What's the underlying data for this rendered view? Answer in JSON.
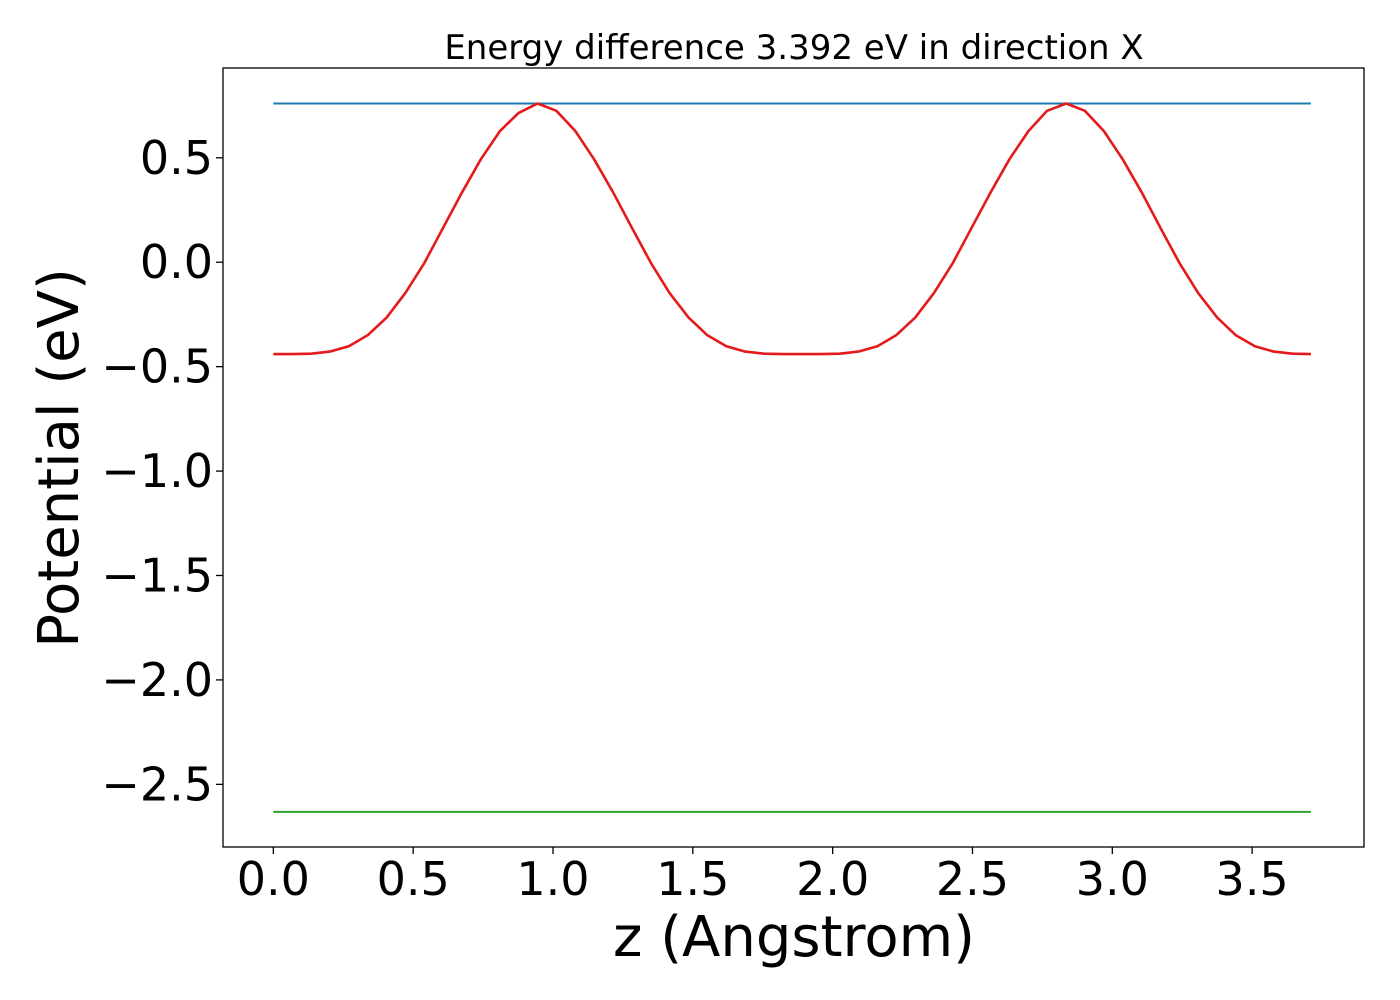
{
  "chart_data": {
    "type": "line",
    "title": "Energy difference 3.392 eV in direction X",
    "xlabel": "z (Angstrom)",
    "ylabel": "Potential (eV)",
    "xlim": [
      -0.18,
      3.9
    ],
    "ylim": [
      -2.8,
      0.93
    ],
    "xticks": [
      0.0,
      0.5,
      1.0,
      1.5,
      2.0,
      2.5,
      3.0,
      3.5
    ],
    "xtick_labels": [
      "0.0",
      "0.5",
      "1.0",
      "1.5",
      "2.0",
      "2.5",
      "3.0",
      "3.5"
    ],
    "yticks": [
      0.5,
      0.0,
      -0.5,
      -1.0,
      -1.5,
      -2.0,
      -2.5
    ],
    "ytick_labels": [
      "0.5",
      "0.0",
      "−0.5",
      "−1.0",
      "−1.5",
      "−2.0",
      "−2.5"
    ],
    "grid": false,
    "legend": "none",
    "series": [
      {
        "color": "#1f77b4",
        "x": [
          0.0,
          3.71
        ],
        "y": [
          0.76,
          0.76
        ]
      },
      {
        "color": "#2ca02c",
        "x": [
          0.0,
          3.71
        ],
        "y": [
          -2.632,
          -2.632
        ]
      },
      {
        "color": "#e41a1c",
        "x": [
          0.0,
          0.067,
          0.135,
          0.202,
          0.27,
          0.337,
          0.405,
          0.472,
          0.54,
          0.607,
          0.675,
          0.742,
          0.81,
          0.877,
          0.945,
          1.012,
          1.08,
          1.147,
          1.215,
          1.282,
          1.35,
          1.417,
          1.485,
          1.552,
          1.62,
          1.687,
          1.755,
          1.822,
          1.89,
          1.957,
          2.025,
          2.092,
          2.16,
          2.227,
          2.295,
          2.362,
          2.43,
          2.497,
          2.565,
          2.632,
          2.7,
          2.767,
          2.835,
          2.902,
          2.97,
          3.037,
          3.105,
          3.172,
          3.24,
          3.307,
          3.375,
          3.442,
          3.51,
          3.577,
          3.645,
          3.71
        ],
        "y": [
          -0.44,
          -0.44,
          -0.438,
          -0.428,
          -0.402,
          -0.35,
          -0.265,
          -0.148,
          -0.003,
          0.165,
          0.335,
          0.493,
          0.628,
          0.715,
          0.76,
          0.725,
          0.628,
          0.493,
          0.335,
          0.165,
          -0.003,
          -0.148,
          -0.265,
          -0.35,
          -0.402,
          -0.428,
          -0.438,
          -0.44,
          -0.44,
          -0.44,
          -0.438,
          -0.428,
          -0.402,
          -0.35,
          -0.265,
          -0.148,
          -0.003,
          0.165,
          0.335,
          0.493,
          0.628,
          0.725,
          0.76,
          0.725,
          0.628,
          0.493,
          0.335,
          0.165,
          -0.003,
          -0.148,
          -0.265,
          -0.35,
          -0.402,
          -0.428,
          -0.438,
          -0.44
        ]
      }
    ]
  }
}
